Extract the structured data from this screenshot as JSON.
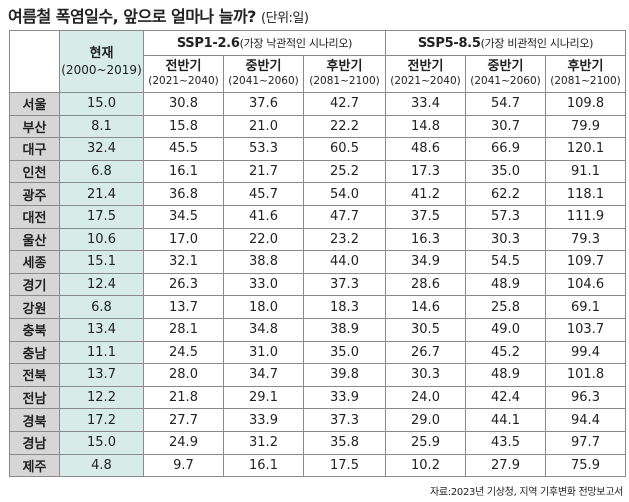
{
  "title": "여름철 폭염일수, 앞으로 얼마나 늘까?",
  "unit": "(단위:일)",
  "header": {
    "current": {
      "label": "현재",
      "range": "(2000~2019)"
    },
    "scenarios": [
      {
        "name": "SSP1-2.6",
        "desc": "(가장 낙관적인 시나리오)"
      },
      {
        "name": "SSP5-8.5",
        "desc": "(가장 비관적인 시나리오)"
      }
    ],
    "periods": [
      {
        "label": "전반기",
        "range": "(2021~2040)"
      },
      {
        "label": "중반기",
        "range": "(2041~2060)"
      },
      {
        "label": "후반기",
        "range": "(2081~2100)"
      }
    ]
  },
  "rows": [
    {
      "region": "서울",
      "values": [
        "15.0",
        "30.8",
        "37.6",
        "42.7",
        "33.4",
        "54.7",
        "109.8"
      ]
    },
    {
      "region": "부산",
      "values": [
        "8.1",
        "15.8",
        "21.0",
        "22.2",
        "14.8",
        "30.7",
        "79.9"
      ]
    },
    {
      "region": "대구",
      "values": [
        "32.4",
        "45.5",
        "53.3",
        "60.5",
        "48.6",
        "66.9",
        "120.1"
      ]
    },
    {
      "region": "인천",
      "values": [
        "6.8",
        "16.1",
        "21.7",
        "25.2",
        "17.3",
        "35.0",
        "91.1"
      ]
    },
    {
      "region": "광주",
      "values": [
        "21.4",
        "36.8",
        "45.7",
        "54.0",
        "41.2",
        "62.2",
        "118.1"
      ]
    },
    {
      "region": "대전",
      "values": [
        "17.5",
        "34.5",
        "41.6",
        "47.7",
        "37.5",
        "57.3",
        "111.9"
      ]
    },
    {
      "region": "울산",
      "values": [
        "10.6",
        "17.0",
        "22.0",
        "23.2",
        "16.3",
        "30.3",
        "79.3"
      ]
    },
    {
      "region": "세종",
      "values": [
        "15.1",
        "32.1",
        "38.8",
        "44.0",
        "34.9",
        "54.5",
        "109.7"
      ]
    },
    {
      "region": "경기",
      "values": [
        "12.4",
        "26.3",
        "33.0",
        "37.3",
        "28.6",
        "48.9",
        "104.6"
      ]
    },
    {
      "region": "강원",
      "values": [
        "6.8",
        "13.7",
        "18.0",
        "18.3",
        "14.6",
        "25.8",
        "69.1"
      ]
    },
    {
      "region": "충북",
      "values": [
        "13.4",
        "28.1",
        "34.8",
        "38.9",
        "30.5",
        "49.0",
        "103.7"
      ]
    },
    {
      "region": "충남",
      "values": [
        "11.1",
        "24.5",
        "31.0",
        "35.0",
        "26.7",
        "45.2",
        "99.4"
      ]
    },
    {
      "region": "전북",
      "values": [
        "13.7",
        "28.0",
        "34.7",
        "39.8",
        "30.3",
        "48.9",
        "101.8"
      ]
    },
    {
      "region": "전남",
      "values": [
        "12.2",
        "21.8",
        "29.1",
        "33.9",
        "24.0",
        "42.4",
        "96.3"
      ]
    },
    {
      "region": "경북",
      "values": [
        "17.2",
        "27.7",
        "33.9",
        "37.3",
        "29.0",
        "44.1",
        "94.4"
      ]
    },
    {
      "region": "경남",
      "values": [
        "15.0",
        "24.9",
        "31.2",
        "35.8",
        "25.9",
        "43.5",
        "97.7"
      ]
    },
    {
      "region": "제주",
      "values": [
        "4.8",
        "9.7",
        "16.1",
        "17.5",
        "10.2",
        "27.9",
        "75.9"
      ]
    }
  ],
  "source": "자료:2023년 기상청, 지역 기후변화 전망보고서",
  "colors": {
    "current_column": "#d7ebe9",
    "region_column": "#d6d6d6",
    "border": "#8a8a8a"
  }
}
